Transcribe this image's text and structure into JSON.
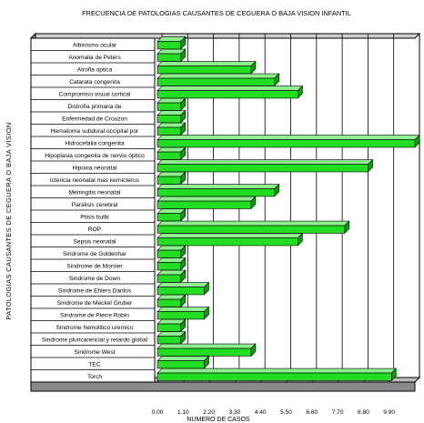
{
  "chart_data": {
    "type": "bar",
    "orientation": "horizontal",
    "title": "FRECUENCIA DE PATOLOGIAS CAUSANTES DE CEGUERA O BAJA  VISION INFANTIL",
    "xlabel": "NUMERO DE CASOS",
    "ylabel": "PATOLOGIAS CAUSANTES DE CEGUERA O  BAJA VISION",
    "xlim": [
      0,
      11
    ],
    "xticks": [
      "0.00",
      "1.10",
      "2.20",
      "3.30",
      "4.40",
      "5.50",
      "6.60",
      "7.70",
      "8.80",
      "9.90"
    ],
    "grid": true,
    "bar_color": "#22dd22",
    "categories": [
      "Albinismo  ocular",
      "Anomalia de Peters",
      "Atrofia optica",
      "Catarata congenita",
      "Compromiso visual cortical",
      "Distrofia primaria de",
      "Enfermedad de Crouzon",
      "Hematoma  subdural occipital por",
      "Hidrocefalia congenita",
      "Hipoplasia congenita de  nervio  óptico",
      "Hipoxia neonatal",
      "Ictericia neonatal  mas  kernicterus",
      "Meningitis neonatal",
      "Paralisis cerebral",
      "Ptisis bulbi",
      "ROP",
      "Sepsis neonatal",
      "Sindrome  de  Goldenhar",
      "Sindrome  de Morsier",
      "Sindrome de Down",
      "Sindrome de Ehlers Danlos",
      "Sindrome de Meckel  Gruber",
      "Sindrome de Pierre Robin",
      "Sindrome hemolitico uremico",
      "Sindrome pluricarencial y retardo  global",
      "Sindrome West",
      "TEC",
      "Torch"
    ],
    "values": [
      1,
      1,
      4,
      5,
      6,
      1,
      1,
      1,
      11,
      1,
      9,
      1,
      5,
      4,
      1,
      8,
      6,
      1,
      1,
      1,
      2,
      1,
      2,
      1,
      1,
      4,
      2,
      10
    ]
  }
}
